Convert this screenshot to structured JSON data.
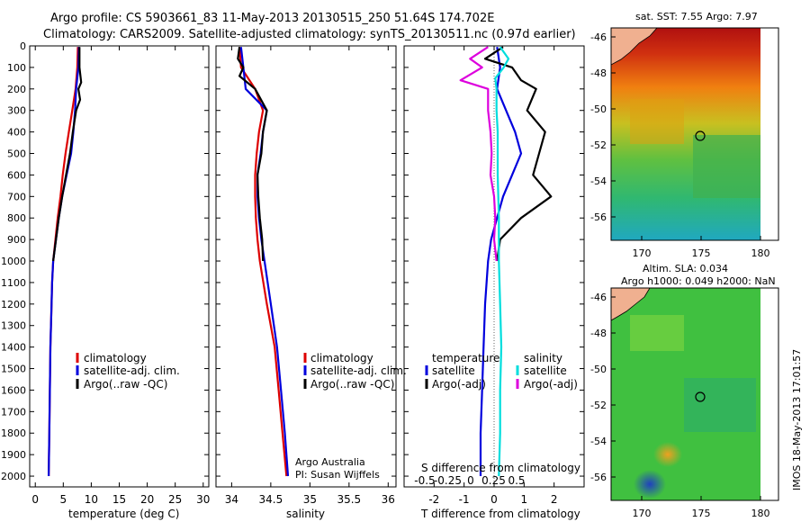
{
  "header": {
    "line1": "Argo profile: CS 5903661_83 11-May-2013 20130515_250 51.64S 174.702E",
    "line2": "Climatology: CARS2009. Satellite-adjusted climatology: synTS_20130511.nc (0.97d earlier)"
  },
  "colors": {
    "climatology": "#dd0000",
    "satellite": "#0000dd",
    "argo": "#000000",
    "sat_salinity": "#00dddd",
    "argo_salinity": "#dd00dd"
  },
  "side_panels": {
    "sst_title": "sat. SST: 7.55  Argo: 7.97",
    "sla_title1": "Altim. SLA: 0.034",
    "sla_title2": "Argo h1000: 0.049  h2000: NaN",
    "lat_ticks": [
      "-46",
      "-48",
      "-50",
      "-52",
      "-54",
      "-56"
    ],
    "lon_ticks": [
      "170",
      "175",
      "180"
    ],
    "timestamp": "IMOS 18-May-2013 17:01:57"
  },
  "credits": {
    "line1": "Argo Australia",
    "line2": "PI: Susan Wijffels"
  },
  "chart_data": [
    {
      "type": "line",
      "name": "temperature",
      "xlabel": "temperature (deg C)",
      "ylabel": "",
      "xlim": [
        -1,
        31
      ],
      "ylim": [
        2050,
        0
      ],
      "xticks": [
        0,
        5,
        10,
        15,
        20,
        25,
        30
      ],
      "yticks": [
        0,
        100,
        200,
        300,
        400,
        500,
        600,
        700,
        800,
        900,
        1000,
        1100,
        1200,
        1300,
        1400,
        1500,
        1600,
        1700,
        1800,
        1900,
        2000
      ],
      "legend": [
        "climatology",
        "satellite-adj. clim.",
        "Argo(..raw -QC)"
      ],
      "legend_position": "lower-middle",
      "series": [
        {
          "name": "climatology",
          "color_key": "climatology",
          "depth": [
            5,
            100,
            200,
            300,
            400,
            500,
            600,
            700,
            800,
            900,
            1000,
            1100,
            1200,
            1400,
            1600,
            1800,
            2000
          ],
          "values": [
            7.6,
            7.5,
            7.2,
            6.6,
            6.0,
            5.4,
            4.9,
            4.5,
            4.0,
            3.6,
            3.2,
            3.0,
            2.9,
            2.7,
            2.6,
            2.5,
            2.4
          ]
        },
        {
          "name": "satellite-adj. clim.",
          "color_key": "satellite",
          "depth": [
            5,
            100,
            200,
            300,
            400,
            500,
            600,
            700,
            800,
            900,
            1000,
            1100,
            1200,
            1400,
            1600,
            1800,
            2000
          ],
          "values": [
            7.8,
            7.7,
            7.3,
            7.1,
            6.8,
            6.4,
            5.6,
            4.8,
            4.2,
            3.7,
            3.2,
            3.0,
            2.9,
            2.7,
            2.6,
            2.5,
            2.4
          ]
        },
        {
          "name": "Argo(..raw -QC)",
          "color_key": "argo",
          "depth": [
            5,
            100,
            170,
            200,
            250,
            300,
            400,
            500,
            600,
            700,
            800,
            900,
            1000
          ],
          "values": [
            7.9,
            7.9,
            8.2,
            7.7,
            8.0,
            7.3,
            6.7,
            6.2,
            5.5,
            4.8,
            4.2,
            3.7,
            3.2
          ]
        }
      ]
    },
    {
      "type": "line",
      "name": "salinity",
      "xlabel": "salinity",
      "xlim": [
        33.8,
        36.1
      ],
      "ylim": [
        2050,
        0
      ],
      "xticks": [
        34,
        34.5,
        35,
        35.5,
        36
      ],
      "legend": [
        "climatology",
        "satellite-adj. clim.",
        "Argo(..raw -QC)"
      ],
      "legend_position": "lower-right",
      "series": [
        {
          "name": "climatology",
          "color_key": "climatology",
          "depth": [
            5,
            100,
            200,
            300,
            400,
            500,
            600,
            700,
            800,
            900,
            1000,
            1200,
            1400,
            1600,
            1800,
            2000
          ],
          "values": [
            34.1,
            34.12,
            34.3,
            34.4,
            34.35,
            34.32,
            34.3,
            34.3,
            34.31,
            34.33,
            34.36,
            34.45,
            34.55,
            34.6,
            34.65,
            34.7
          ]
        },
        {
          "name": "satellite-adj. clim.",
          "color_key": "satellite",
          "depth": [
            5,
            100,
            200,
            300,
            400,
            500,
            600,
            700,
            800,
            900,
            1000,
            1200,
            1400,
            1600,
            1800,
            2000
          ],
          "values": [
            34.12,
            34.15,
            34.18,
            34.45,
            34.4,
            34.37,
            34.33,
            34.33,
            34.35,
            34.38,
            34.42,
            34.5,
            34.58,
            34.63,
            34.68,
            34.72
          ]
        },
        {
          "name": "Argo(..raw -QC)",
          "color_key": "argo",
          "depth": [
            5,
            60,
            100,
            140,
            170,
            200,
            300,
            400,
            500,
            600,
            700,
            800,
            900,
            1000
          ],
          "values": [
            34.1,
            34.08,
            34.15,
            34.1,
            34.2,
            34.3,
            34.45,
            34.4,
            34.38,
            34.33,
            34.34,
            34.36,
            34.39,
            34.4
          ]
        }
      ]
    },
    {
      "type": "line",
      "name": "difference",
      "xlabel": "T difference from climatology",
      "xlabel_top": "S difference from climatology",
      "xlim": [
        -3,
        3
      ],
      "ylim": [
        2050,
        0
      ],
      "xticks": [
        -2,
        -1,
        0,
        1,
        2
      ],
      "xticks_salinity": [
        "-0.5",
        "-0.25",
        "0",
        "0.25",
        "0.5"
      ],
      "legend": [
        "temperature",
        "satellite",
        "Argo(-adj)",
        "salinity",
        "satellite",
        "Argo(-adj)"
      ],
      "legend_position": "lower-center",
      "series": [
        {
          "name": "T satellite",
          "color_key": "satellite",
          "depth": [
            5,
            100,
            200,
            300,
            400,
            500,
            600,
            700,
            800,
            900,
            1000,
            1200,
            1400,
            1600,
            1800,
            2000
          ],
          "values": [
            0.1,
            0.2,
            0.1,
            0.4,
            0.7,
            0.9,
            0.6,
            0.3,
            0.1,
            -0.1,
            -0.2,
            -0.3,
            -0.35,
            -0.4,
            -0.45,
            -0.45
          ]
        },
        {
          "name": "T Argo(-adj)",
          "color_key": "argo",
          "depth": [
            5,
            60,
            100,
            160,
            200,
            300,
            400,
            500,
            600,
            700,
            800,
            900,
            1000
          ],
          "values": [
            0.3,
            -0.3,
            0.6,
            0.9,
            1.4,
            1.1,
            1.7,
            1.5,
            1.3,
            1.9,
            0.9,
            0.2,
            0.1
          ]
        },
        {
          "name": "S satellite",
          "color_key": "sat_salinity",
          "depth": [
            5,
            60,
            100,
            150,
            200,
            300,
            400,
            600,
            800,
            1000,
            1200,
            1400,
            1600,
            1800,
            2000
          ],
          "values": [
            0.05,
            0.12,
            0.08,
            0.01,
            0.02,
            0.02,
            0.03,
            0.03,
            0.04,
            0.04,
            0.05,
            0.06,
            0.05,
            0.05,
            0.04
          ]
        },
        {
          "name": "S Argo(-adj)",
          "color_key": "argo_salinity",
          "depth": [
            5,
            60,
            100,
            160,
            200,
            300,
            400,
            500,
            600,
            700,
            800,
            900,
            1000
          ],
          "values": [
            -0.05,
            -0.2,
            -0.1,
            -0.28,
            -0.05,
            -0.05,
            -0.03,
            -0.02,
            -0.03,
            0.0,
            0.01,
            0.0,
            0.02
          ]
        }
      ]
    }
  ]
}
